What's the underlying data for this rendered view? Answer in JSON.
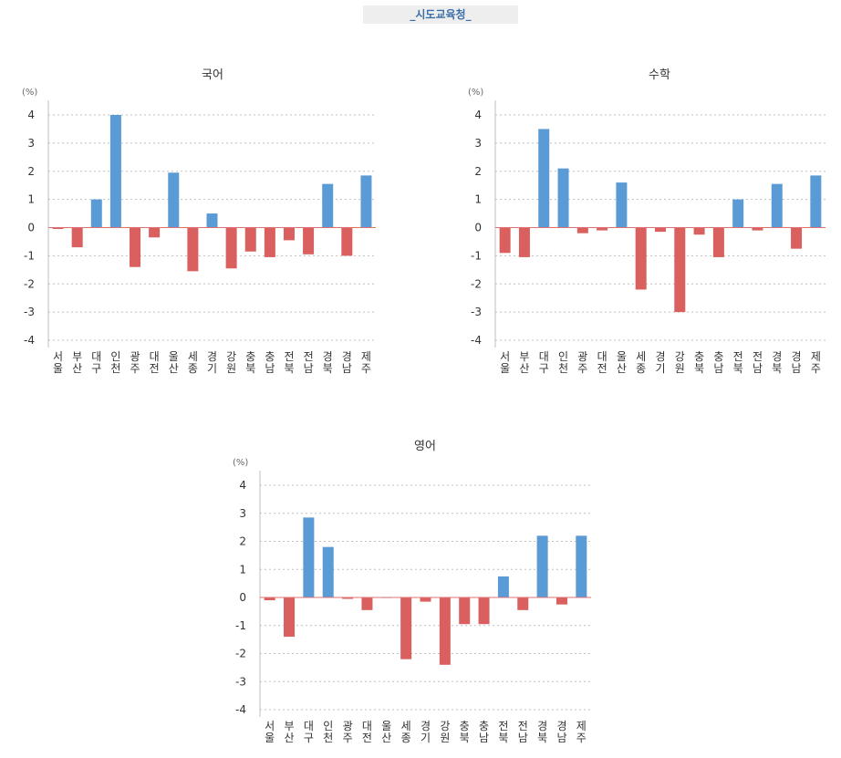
{
  "header": {
    "title": "_시도교육청_"
  },
  "chart_data": [
    {
      "type": "bar",
      "title": "국어",
      "unit_label": "(%)",
      "ylim": [
        -4,
        4
      ],
      "yticks": [
        4,
        3,
        2,
        1,
        0,
        -1,
        -2,
        -3,
        -4
      ],
      "categories": [
        "서울",
        "부산",
        "대구",
        "인천",
        "광주",
        "대전",
        "울산",
        "세종",
        "경기",
        "강원",
        "충북",
        "충남",
        "전북",
        "전남",
        "경북",
        "경남",
        "제주"
      ],
      "values": [
        -0.05,
        -0.7,
        1.0,
        4.0,
        -1.4,
        -0.35,
        1.95,
        -1.55,
        0.5,
        -1.45,
        -0.85,
        -1.05,
        -0.45,
        -0.95,
        1.55,
        -1.0,
        1.85
      ],
      "positive_color": "#5b9bd5",
      "negative_color": "#d9605f",
      "grid": true
    },
    {
      "type": "bar",
      "title": "수학",
      "unit_label": "(%)",
      "ylim": [
        -4,
        4
      ],
      "yticks": [
        4,
        3,
        2,
        1,
        0,
        -1,
        -2,
        -3,
        -4
      ],
      "categories": [
        "서울",
        "부산",
        "대구",
        "인천",
        "광주",
        "대전",
        "울산",
        "세종",
        "경기",
        "강원",
        "충북",
        "충남",
        "전북",
        "전남",
        "경북",
        "경남",
        "제주"
      ],
      "values": [
        -0.9,
        -1.05,
        3.5,
        2.1,
        -0.2,
        -0.1,
        1.6,
        -2.2,
        -0.15,
        -3.0,
        -0.25,
        -1.05,
        1.0,
        -0.1,
        1.55,
        -0.75,
        1.85
      ],
      "positive_color": "#5b9bd5",
      "negative_color": "#d9605f",
      "grid": true
    },
    {
      "type": "bar",
      "title": "영어",
      "unit_label": "(%)",
      "ylim": [
        -4,
        4
      ],
      "yticks": [
        4,
        3,
        2,
        1,
        0,
        -1,
        -2,
        -3,
        -4
      ],
      "categories": [
        "서울",
        "부산",
        "대구",
        "인천",
        "광주",
        "대전",
        "울산",
        "세종",
        "경기",
        "강원",
        "충북",
        "충남",
        "전북",
        "전남",
        "경북",
        "경남",
        "제주"
      ],
      "values": [
        -0.1,
        -1.4,
        2.85,
        1.8,
        -0.05,
        -0.45,
        0.0,
        -2.2,
        -0.15,
        -2.4,
        -0.95,
        -0.95,
        0.75,
        -0.45,
        2.2,
        -0.25,
        2.2
      ],
      "positive_color": "#5b9bd5",
      "negative_color": "#d9605f",
      "grid": true
    }
  ]
}
